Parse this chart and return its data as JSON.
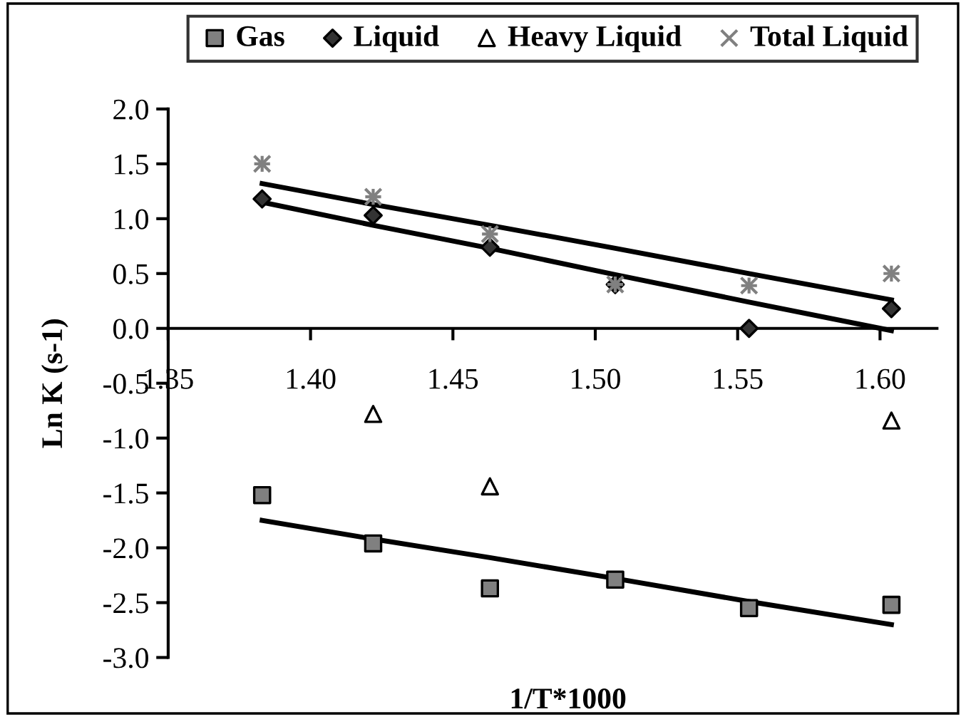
{
  "chart_data": {
    "type": "scatter",
    "xlabel": "1/T*1000",
    "ylabel": "Ln K (s-1)",
    "xlim": [
      1.35,
      1.62
    ],
    "xticks": [
      {
        "value": 1.35,
        "label": "1.35"
      },
      {
        "value": 1.4,
        "label": "1.40"
      },
      {
        "value": 1.45,
        "label": "1.45"
      },
      {
        "value": 1.5,
        "label": "1.50"
      },
      {
        "value": 1.55,
        "label": "1.55"
      },
      {
        "value": 1.6,
        "label": "1.60"
      }
    ],
    "ylim": [
      -3,
      2
    ],
    "yticks": [
      {
        "value": -3,
        "label": "-3.0"
      },
      {
        "value": -2.5,
        "label": "-2.5"
      },
      {
        "value": -2,
        "label": "-2.0"
      },
      {
        "value": -1.5,
        "label": "-1.5"
      },
      {
        "value": -1,
        "label": "-1.0"
      },
      {
        "value": -0.5,
        "label": "-0.5"
      },
      {
        "value": 0,
        "label": "0.0"
      },
      {
        "value": 0.5,
        "label": "0.5"
      },
      {
        "value": 1,
        "label": "1.0"
      },
      {
        "value": 1.5,
        "label": "1.5"
      },
      {
        "value": 2,
        "label": "2.0"
      }
    ],
    "x": [
      1.383,
      1.422,
      1.463,
      1.507,
      1.554,
      1.604
    ],
    "grid": false,
    "legend": "top",
    "series": [
      {
        "name": "Gas",
        "color": "#808080",
        "marker": "square",
        "values": [
          -1.52,
          -1.96,
          -2.37,
          -2.29,
          -2.55,
          -2.52
        ]
      },
      {
        "name": "Liquid",
        "color": "#333333",
        "marker": "diamond",
        "values": [
          1.18,
          1.03,
          0.74,
          0.4,
          0.0,
          0.18
        ]
      },
      {
        "name": "Heavy Liquid",
        "color": "#ffffff",
        "marker": "triangle",
        "values": [
          null,
          -0.78,
          -1.44,
          null,
          null,
          -0.84
        ]
      },
      {
        "name": "Total Liquid",
        "color": "#808080",
        "marker": "cross",
        "values": [
          1.5,
          1.2,
          0.86,
          0.4,
          0.39,
          0.5
        ]
      },
      {
        "type": "line",
        "color": "#000000",
        "values": [
          1.32,
          1.13,
          0.94,
          0.73,
          0.5,
          0.26
        ]
      },
      {
        "type": "line",
        "color": "#000000",
        "values": [
          1.15,
          0.94,
          0.73,
          0.49,
          0.24,
          -0.02
        ]
      },
      {
        "type": "line",
        "color": "#000000",
        "values": [
          -1.75,
          -1.92,
          -2.09,
          -2.28,
          -2.49,
          -2.7
        ]
      }
    ]
  }
}
